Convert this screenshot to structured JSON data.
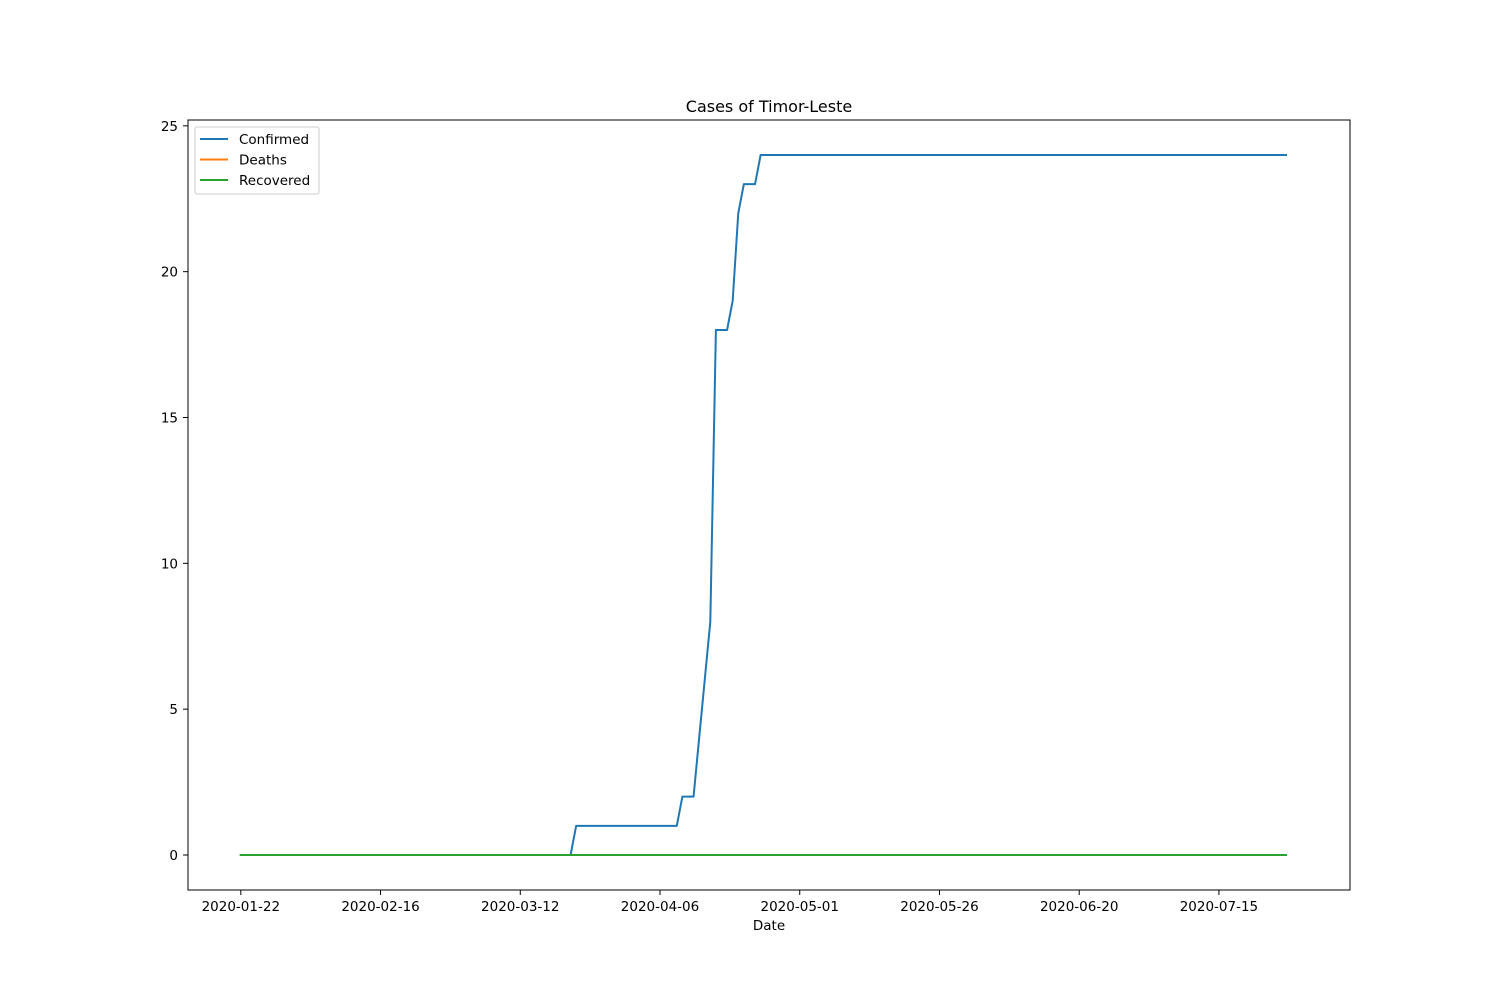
{
  "chart_data": {
    "type": "line",
    "title": "Cases of Timor-Leste",
    "xlabel": "Date",
    "ylabel": "",
    "x_start": "2020-01-22",
    "x_end": "2020-07-27",
    "xlim_days": [
      -9.45,
      198.45
    ],
    "ylim": [
      -1.2,
      25.2
    ],
    "xticks": [
      {
        "day": 0,
        "label": "2020-01-22"
      },
      {
        "day": 25,
        "label": "2020-02-16"
      },
      {
        "day": 50,
        "label": "2020-03-12"
      },
      {
        "day": 75,
        "label": "2020-04-06"
      },
      {
        "day": 100,
        "label": "2020-05-01"
      },
      {
        "day": 125,
        "label": "2020-05-26"
      },
      {
        "day": 150,
        "label": "2020-06-20"
      },
      {
        "day": 175,
        "label": "2020-07-15"
      }
    ],
    "yticks": [
      {
        "value": 0,
        "label": "0"
      },
      {
        "value": 5,
        "label": "5"
      },
      {
        "value": 10,
        "label": "10"
      },
      {
        "value": 15,
        "label": "15"
      },
      {
        "value": 20,
        "label": "20"
      },
      {
        "value": 25,
        "label": "25"
      }
    ],
    "legend_position": "upper-left",
    "series": [
      {
        "name": "Confirmed",
        "color": "#1f77b4",
        "points": [
          [
            0,
            0
          ],
          [
            59,
            0
          ],
          [
            60,
            1
          ],
          [
            78,
            1
          ],
          [
            79,
            2
          ],
          [
            81,
            2
          ],
          [
            82,
            4
          ],
          [
            83,
            6
          ],
          [
            84,
            8
          ],
          [
            85,
            18
          ],
          [
            87,
            18
          ],
          [
            88,
            19
          ],
          [
            89,
            22
          ],
          [
            90,
            23
          ],
          [
            92,
            23
          ],
          [
            93,
            24
          ],
          [
            187,
            24
          ]
        ]
      },
      {
        "name": "Deaths",
        "color": "#ff7f0e",
        "points": [
          [
            0,
            0
          ],
          [
            187,
            0
          ]
        ]
      },
      {
        "name": "Recovered",
        "color": "#2ca02c",
        "points": [
          [
            0,
            0
          ],
          [
            187,
            0
          ]
        ]
      }
    ]
  }
}
